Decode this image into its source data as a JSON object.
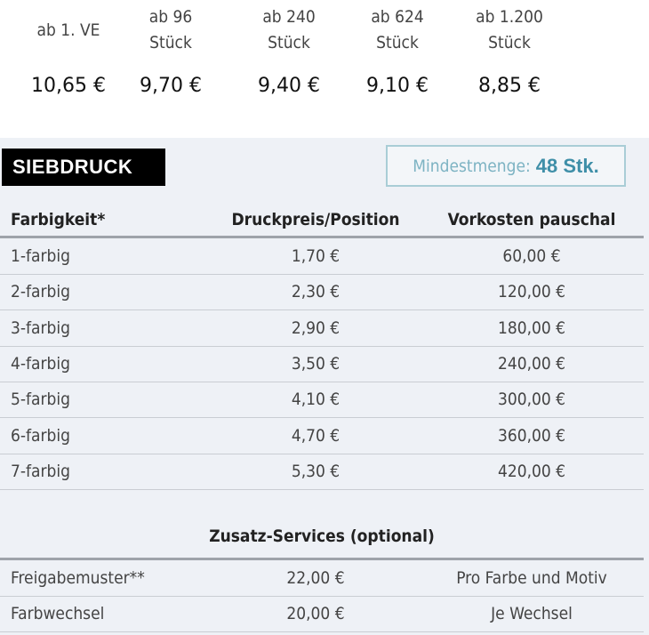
{
  "tiers": [
    {
      "label": [
        "ab 1. VE"
      ],
      "price": "10,65 €"
    },
    {
      "label": [
        "ab 96",
        "Stück"
      ],
      "price": "9,70 €"
    },
    {
      "label": [
        "ab 240",
        "Stück"
      ],
      "price": "9,40 €"
    },
    {
      "label": [
        "ab 624",
        "Stück"
      ],
      "price": "9,10 €"
    },
    {
      "label": [
        "ab 1.200",
        "Stück"
      ],
      "price": "8,85 €"
    }
  ],
  "section": {
    "title": "SIEBDRUCK",
    "min_label": "Mindestmenge:",
    "min_value": "48 Stk."
  },
  "table": {
    "headers": [
      "Farbigkeit*",
      "Druckpreis/Position",
      "Vorkosten pauschal"
    ],
    "rows": [
      [
        "1-farbig",
        "1,70 €",
        "60,00 €"
      ],
      [
        "2-farbig",
        "2,30 €",
        "120,00 €"
      ],
      [
        "3-farbig",
        "2,90 €",
        "180,00 €"
      ],
      [
        "4-farbig",
        "3,50 €",
        "240,00 €"
      ],
      [
        "5-farbig",
        "4,10 €",
        "300,00 €"
      ],
      [
        "6-farbig",
        "4,70 €",
        "360,00 €"
      ],
      [
        "7-farbig",
        "5,30 €",
        "420,00 €"
      ]
    ]
  },
  "services": {
    "title": "Zusatz-Services (optional)",
    "rows": [
      [
        "Freigabemuster**",
        "22,00 €",
        "Pro Farbe und Motiv"
      ],
      [
        "Farbwechsel",
        "20,00 €",
        "Je Wechsel"
      ]
    ]
  },
  "colors": {
    "accent": "#3f8fa8",
    "panel": "#eef1f6",
    "badge": "#000000"
  }
}
